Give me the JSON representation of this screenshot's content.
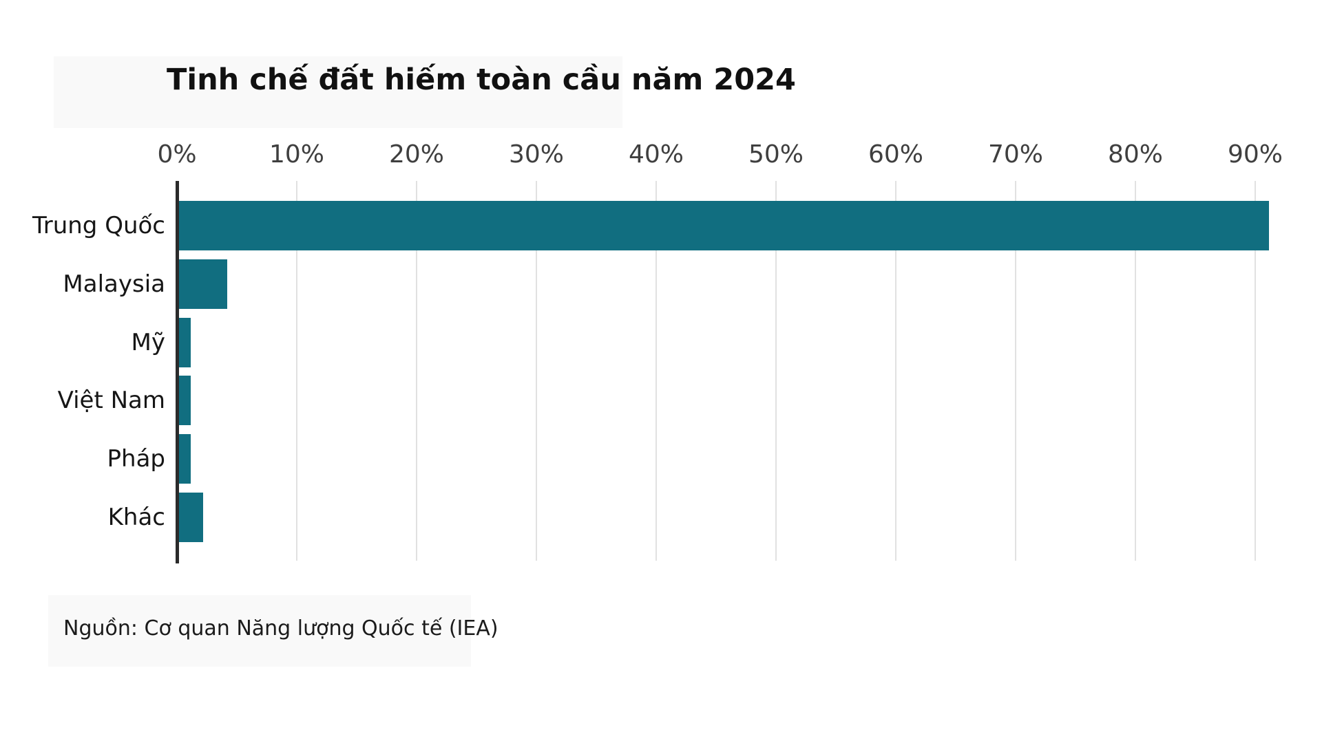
{
  "title": "Tinh chế đất hiếm toàn cầu năm 2024",
  "source": "Nguồn: Cơ quan Năng lượng Quốc tế (IEA)",
  "chart_data": {
    "type": "bar",
    "orientation": "horizontal",
    "title": "Tinh chế đất hiếm toàn cầu năm 2024",
    "categories": [
      "Trung Quốc",
      "Malaysia",
      "Mỹ",
      "Việt Nam",
      "Pháp",
      "Khác"
    ],
    "values": [
      91,
      4,
      1,
      1,
      1,
      2
    ],
    "unit": "%",
    "xlabel": "",
    "ylabel": "",
    "x_ticks": [
      "0%",
      "10%",
      "20%",
      "30%",
      "40%",
      "50%",
      "60%",
      "70%",
      "80%",
      "90%"
    ],
    "x_tick_values": [
      0,
      10,
      20,
      30,
      40,
      50,
      60,
      70,
      80,
      90
    ],
    "xlim": [
      0,
      92
    ],
    "grid": true,
    "gridline_color": "#e1e1e1",
    "axis_color": "#2b2b2b",
    "bar_color": "#116e80",
    "legend": "none",
    "source": "Nguồn: Cơ quan Năng lượng Quốc tế (IEA)"
  }
}
